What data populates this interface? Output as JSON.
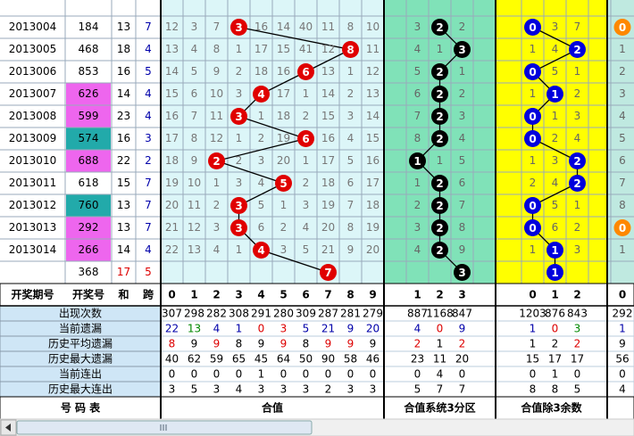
{
  "table": {
    "header": {
      "left": [
        "开奖期号",
        "开奖号",
        "和",
        "跨"
      ],
      "hezhi": [
        0,
        1,
        2,
        3,
        4,
        5,
        6,
        7,
        8,
        9
      ],
      "zone": [
        1,
        2,
        3
      ],
      "mod": [
        0,
        1,
        2
      ],
      "extra": [
        0
      ]
    },
    "rows": [
      {
        "period": "2013004",
        "number": "184",
        "number_bg": null,
        "sum": 13,
        "span": 7,
        "hezhi": 3,
        "hezhi_miss": [
          12,
          3,
          7,
          null,
          16,
          14,
          40,
          11,
          8,
          10
        ],
        "zone": 2,
        "zone_miss": [
          3,
          null,
          2
        ],
        "mod": 0,
        "mod_miss": [
          null,
          3,
          7
        ],
        "extra": 0,
        "extra_hit": true
      },
      {
        "period": "2013005",
        "number": "468",
        "number_bg": null,
        "sum": 18,
        "span": 4,
        "hezhi": 8,
        "hezhi_miss": [
          13,
          4,
          8,
          1,
          17,
          15,
          41,
          12,
          null,
          11
        ],
        "zone": 3,
        "zone_miss": [
          4,
          1,
          null
        ],
        "mod": 2,
        "mod_miss": [
          1,
          4,
          null
        ],
        "extra": 1,
        "extra_hit": false
      },
      {
        "period": "2013006",
        "number": "853",
        "number_bg": null,
        "sum": 16,
        "span": 5,
        "hezhi": 6,
        "hezhi_miss": [
          14,
          5,
          9,
          2,
          18,
          16,
          null,
          13,
          1,
          12
        ],
        "zone": 2,
        "zone_miss": [
          5,
          null,
          1
        ],
        "mod": 0,
        "mod_miss": [
          null,
          5,
          1
        ],
        "extra": 2,
        "extra_hit": false
      },
      {
        "period": "2013007",
        "number": "626",
        "number_bg": "#ee66ee",
        "sum": 14,
        "span": 4,
        "hezhi": 4,
        "hezhi_miss": [
          15,
          6,
          10,
          3,
          null,
          17,
          1,
          14,
          2,
          13
        ],
        "zone": 2,
        "zone_miss": [
          6,
          null,
          2
        ],
        "mod": 1,
        "mod_miss": [
          1,
          null,
          2
        ],
        "extra": 3,
        "extra_hit": false
      },
      {
        "period": "2013008",
        "number": "599",
        "number_bg": "#ee66ee",
        "sum": 23,
        "span": 4,
        "hezhi": 3,
        "hezhi_miss": [
          16,
          7,
          11,
          null,
          1,
          18,
          2,
          15,
          3,
          14
        ],
        "zone": 2,
        "zone_miss": [
          7,
          null,
          3
        ],
        "mod": 0,
        "mod_miss": [
          null,
          1,
          3
        ],
        "extra": 4,
        "extra_hit": false
      },
      {
        "period": "2013009",
        "number": "574",
        "number_bg": "#22aaaa",
        "sum": 16,
        "span": 3,
        "hezhi": 6,
        "hezhi_miss": [
          17,
          8,
          12,
          1,
          2,
          19,
          null,
          16,
          4,
          15
        ],
        "zone": 2,
        "zone_miss": [
          8,
          null,
          4
        ],
        "mod": 0,
        "mod_miss": [
          null,
          2,
          4
        ],
        "extra": 5,
        "extra_hit": false
      },
      {
        "period": "2013010",
        "number": "688",
        "number_bg": "#ee66ee",
        "sum": 22,
        "span": 2,
        "hezhi": 2,
        "hezhi_miss": [
          18,
          9,
          null,
          2,
          3,
          20,
          1,
          17,
          5,
          16
        ],
        "zone": 1,
        "zone_miss": [
          null,
          1,
          5
        ],
        "mod": 2,
        "mod_miss": [
          1,
          3,
          null
        ],
        "extra": 6,
        "extra_hit": false
      },
      {
        "period": "2013011",
        "number": "618",
        "number_bg": null,
        "sum": 15,
        "span": 7,
        "hezhi": 5,
        "hezhi_miss": [
          19,
          10,
          1,
          3,
          4,
          null,
          2,
          18,
          6,
          17
        ],
        "zone": 2,
        "zone_miss": [
          1,
          null,
          6
        ],
        "mod": 2,
        "mod_miss": [
          2,
          4,
          null
        ],
        "extra": 7,
        "extra_hit": false
      },
      {
        "period": "2013012",
        "number": "760",
        "number_bg": "#22aaaa",
        "sum": 13,
        "span": 7,
        "hezhi": 3,
        "hezhi_miss": [
          20,
          11,
          2,
          null,
          5,
          1,
          3,
          19,
          7,
          18
        ],
        "zone": 2,
        "zone_miss": [
          2,
          null,
          7
        ],
        "mod": 0,
        "mod_miss": [
          null,
          5,
          1
        ],
        "extra": 8,
        "extra_hit": false
      },
      {
        "period": "2013013",
        "number": "292",
        "number_bg": "#ee66ee",
        "sum": 13,
        "span": 7,
        "hezhi": 3,
        "hezhi_miss": [
          21,
          12,
          3,
          null,
          6,
          2,
          4,
          20,
          8,
          19
        ],
        "zone": 2,
        "zone_miss": [
          3,
          null,
          8
        ],
        "mod": 0,
        "mod_miss": [
          null,
          6,
          2
        ],
        "extra": 0,
        "extra_hit": true
      },
      {
        "period": "2013014",
        "number": "266",
        "number_bg": "#ee66ee",
        "sum": 14,
        "span": 4,
        "hezhi": 4,
        "hezhi_miss": [
          22,
          13,
          4,
          1,
          null,
          3,
          5,
          21,
          9,
          20
        ],
        "zone": 2,
        "zone_miss": [
          4,
          null,
          9
        ],
        "mod": 1,
        "mod_miss": [
          1,
          null,
          3
        ],
        "extra": 1,
        "extra_hit": false
      }
    ],
    "forecast": {
      "number": "368",
      "sum": 17,
      "span": 5,
      "hezhi": 7,
      "zone": 3,
      "mod": 1
    },
    "stats": [
      {
        "label": "出现次数",
        "color": "#000",
        "values": [
          307,
          298,
          282,
          308,
          291,
          280,
          309,
          287,
          281,
          279,
          887,
          1168,
          847,
          1203,
          876,
          843,
          292
        ]
      },
      {
        "label": "当前遗漏",
        "color": "#0000aa",
        "values": [
          22,
          13,
          4,
          1,
          0,
          3,
          5,
          21,
          9,
          20,
          4,
          0,
          9,
          1,
          0,
          3,
          1
        ],
        "colors": [
          "#0000aa",
          "#008800",
          "#0000aa",
          "#0000aa",
          "#dd0000",
          "#dd0000",
          "#0000aa",
          "#0000aa",
          "#0000aa",
          "#0000aa",
          "#0000aa",
          "#dd0000",
          "#0000aa",
          "#0000aa",
          "#dd0000",
          "#008800",
          "#0000aa"
        ]
      },
      {
        "label": "历史平均遗漏",
        "color": "#000",
        "values": [
          8,
          9,
          9,
          8,
          9,
          9,
          8,
          9,
          9,
          9,
          2,
          1,
          2,
          1,
          2,
          2,
          9
        ],
        "colors": [
          "#dd0000",
          "#000",
          "#dd0000",
          "#000",
          "#000",
          "#dd0000",
          "#000",
          "#dd0000",
          "#dd0000",
          "#000",
          "#dd0000",
          "#000",
          "#dd0000",
          "#000",
          "#000",
          "#dd0000",
          "#000"
        ]
      },
      {
        "label": "历史最大遗漏",
        "color": "#000",
        "values": [
          40,
          62,
          59,
          65,
          45,
          64,
          50,
          90,
          58,
          46,
          23,
          11,
          20,
          15,
          17,
          17,
          56
        ]
      },
      {
        "label": "当前连出",
        "color": "#000",
        "values": [
          0,
          0,
          0,
          0,
          1,
          0,
          0,
          0,
          0,
          0,
          0,
          4,
          0,
          0,
          1,
          0,
          0
        ]
      },
      {
        "label": "历史最大连出",
        "color": "#000",
        "values": [
          3,
          5,
          3,
          4,
          3,
          3,
          3,
          2,
          3,
          3,
          5,
          7,
          7,
          8,
          8,
          5,
          4
        ]
      }
    ],
    "footer": [
      "号 码 表",
      "合值",
      "合值系统3分区",
      "合值除3余数"
    ]
  }
}
